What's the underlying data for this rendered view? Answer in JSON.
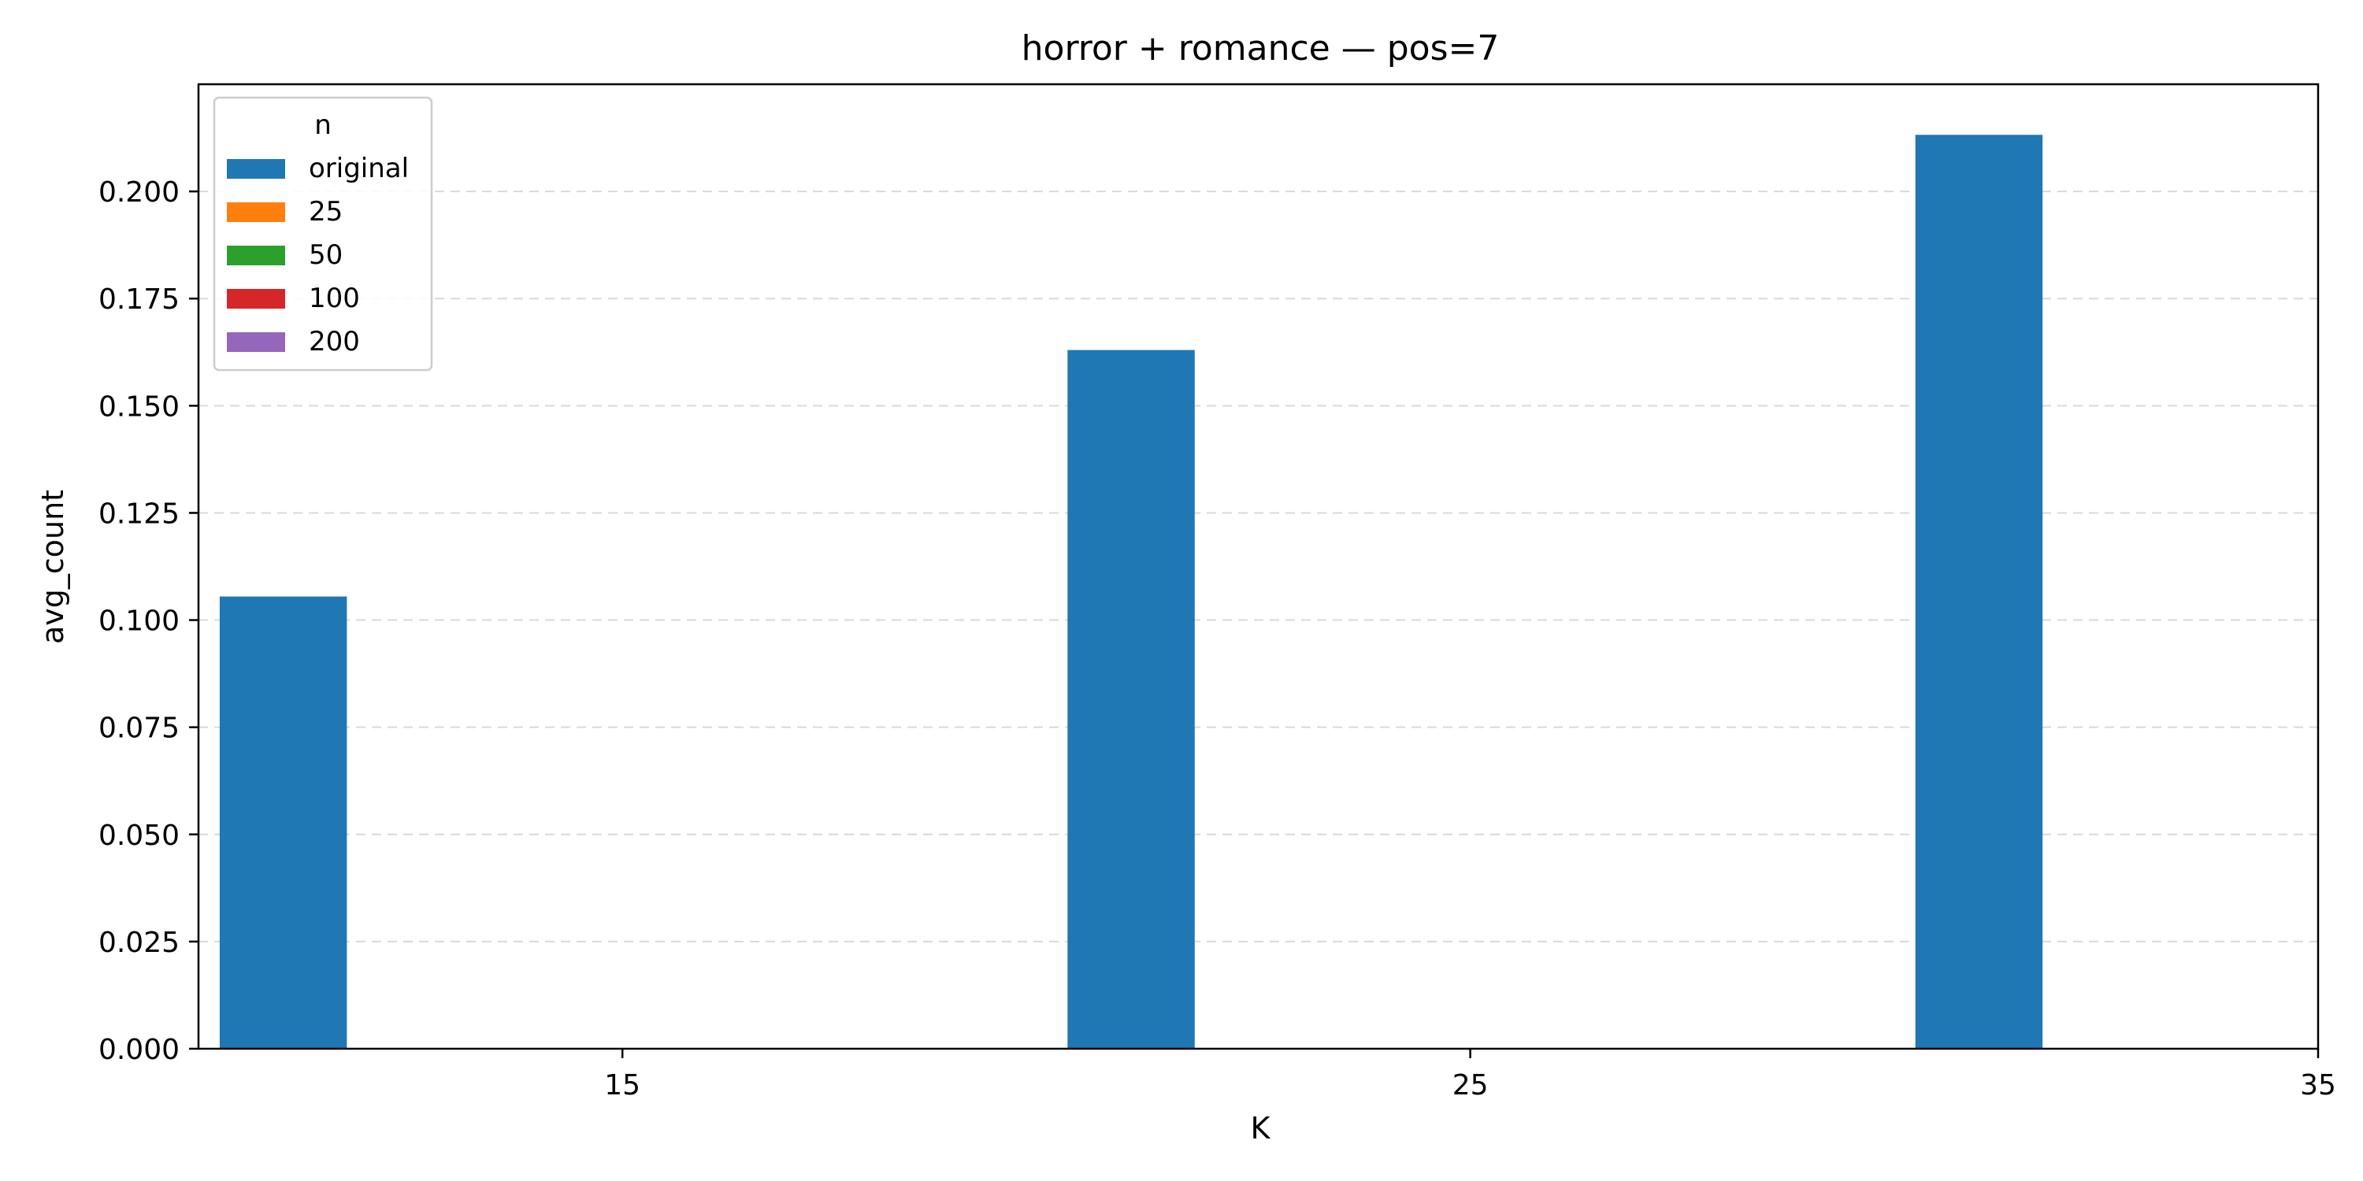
{
  "chart_data": {
    "type": "bar",
    "title": "horror + romance — pos=7",
    "xlabel": "K",
    "ylabel": "avg_count",
    "x_ticks": [
      "15",
      "25",
      "35"
    ],
    "categories": [
      "15",
      "25",
      "35"
    ],
    "ylim": [
      0,
      0.225
    ],
    "y_ticks": [
      0.0,
      0.025,
      0.05,
      0.075,
      0.1,
      0.125,
      0.15,
      0.175,
      0.2
    ],
    "y_tick_labels": [
      "0.000",
      "0.025",
      "0.050",
      "0.075",
      "0.100",
      "0.125",
      "0.150",
      "0.175",
      "0.200"
    ],
    "grid": "horizontal, dashed",
    "legend": {
      "title": "n",
      "placement": "top-left"
    },
    "series": [
      {
        "name": "original",
        "color": "#1f77b4",
        "values": [
          0.1055,
          0.163,
          0.2132
        ]
      },
      {
        "name": "25",
        "color": "#ff7f0e",
        "values": [
          null,
          null,
          null
        ]
      },
      {
        "name": "50",
        "color": "#2ca02c",
        "values": [
          null,
          null,
          null
        ]
      },
      {
        "name": "100",
        "color": "#d62728",
        "values": [
          null,
          null,
          null
        ]
      },
      {
        "name": "200",
        "color": "#9467bd",
        "values": [
          null,
          null,
          null
        ]
      }
    ]
  }
}
